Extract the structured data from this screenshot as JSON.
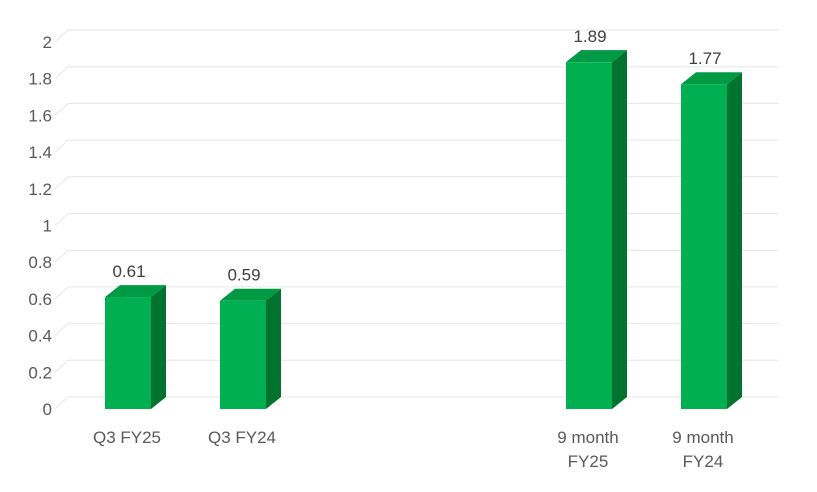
{
  "chart_data": {
    "type": "bar",
    "style": "3d-column",
    "title": "",
    "xlabel": "",
    "ylabel": "",
    "categories": [
      [
        "Q3 FY25"
      ],
      [
        "Q3 FY24"
      ],
      [],
      [
        "9 month",
        "FY25"
      ],
      [
        "9 month",
        "FY24"
      ]
    ],
    "values": [
      0.61,
      0.59,
      null,
      1.89,
      1.77
    ],
    "data_labels": [
      "0.61",
      "0.59",
      "",
      "1.89",
      "1.77"
    ],
    "yticks": [
      "0",
      "0.2",
      "0.4",
      "0.6",
      "0.8",
      "1",
      "1.2",
      "1.4",
      "1.6",
      "1.8",
      "2"
    ],
    "ylim": [
      0,
      2
    ],
    "grid": true,
    "legend": "none",
    "colors": {
      "front": "#00b050",
      "side": "#00732f",
      "top": "#009a45",
      "grid": "#e6e6e6"
    }
  }
}
